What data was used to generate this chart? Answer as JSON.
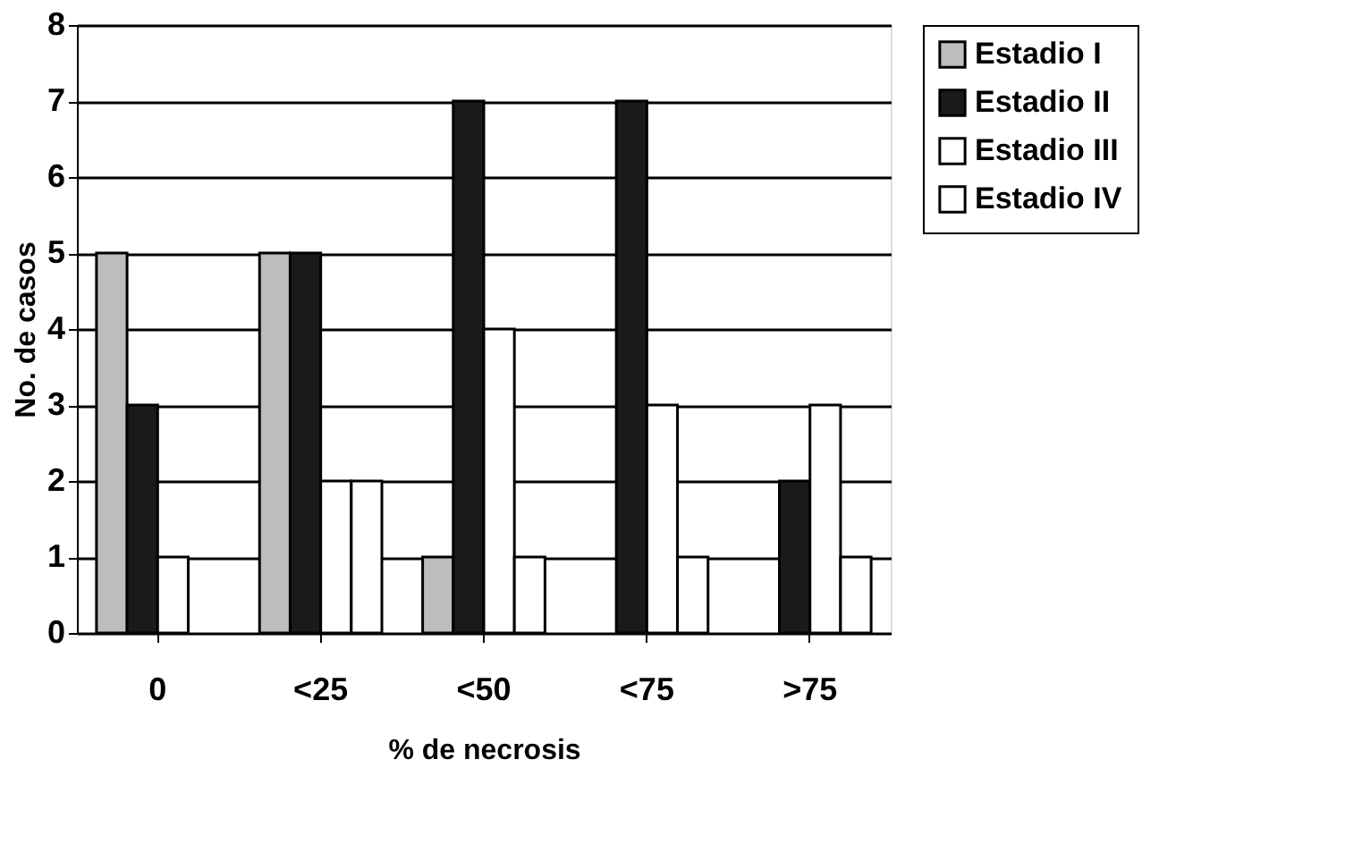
{
  "chart_data": {
    "type": "bar",
    "xlabel": "% de necrosis",
    "ylabel": "No. de casos",
    "categories": [
      "0",
      "<25",
      "<50",
      "<75",
      ">75"
    ],
    "series": [
      {
        "name": "Estadio I",
        "color": "#bdbdbd",
        "values": [
          5,
          5,
          1,
          0,
          0
        ]
      },
      {
        "name": "Estadio II",
        "color": "#1a1a1a",
        "values": [
          3,
          5,
          7,
          7,
          2
        ]
      },
      {
        "name": "Estadio III",
        "color": "#ffffff",
        "values": [
          1,
          2,
          4,
          3,
          3
        ]
      },
      {
        "name": "Estadio IV",
        "color": "#ffffff",
        "values": [
          0,
          2,
          1,
          1,
          1
        ]
      }
    ],
    "ylim": [
      0,
      8
    ],
    "yticks": [
      0,
      1,
      2,
      3,
      4,
      5,
      6,
      7,
      8
    ],
    "grid": "y",
    "legend": "right"
  }
}
